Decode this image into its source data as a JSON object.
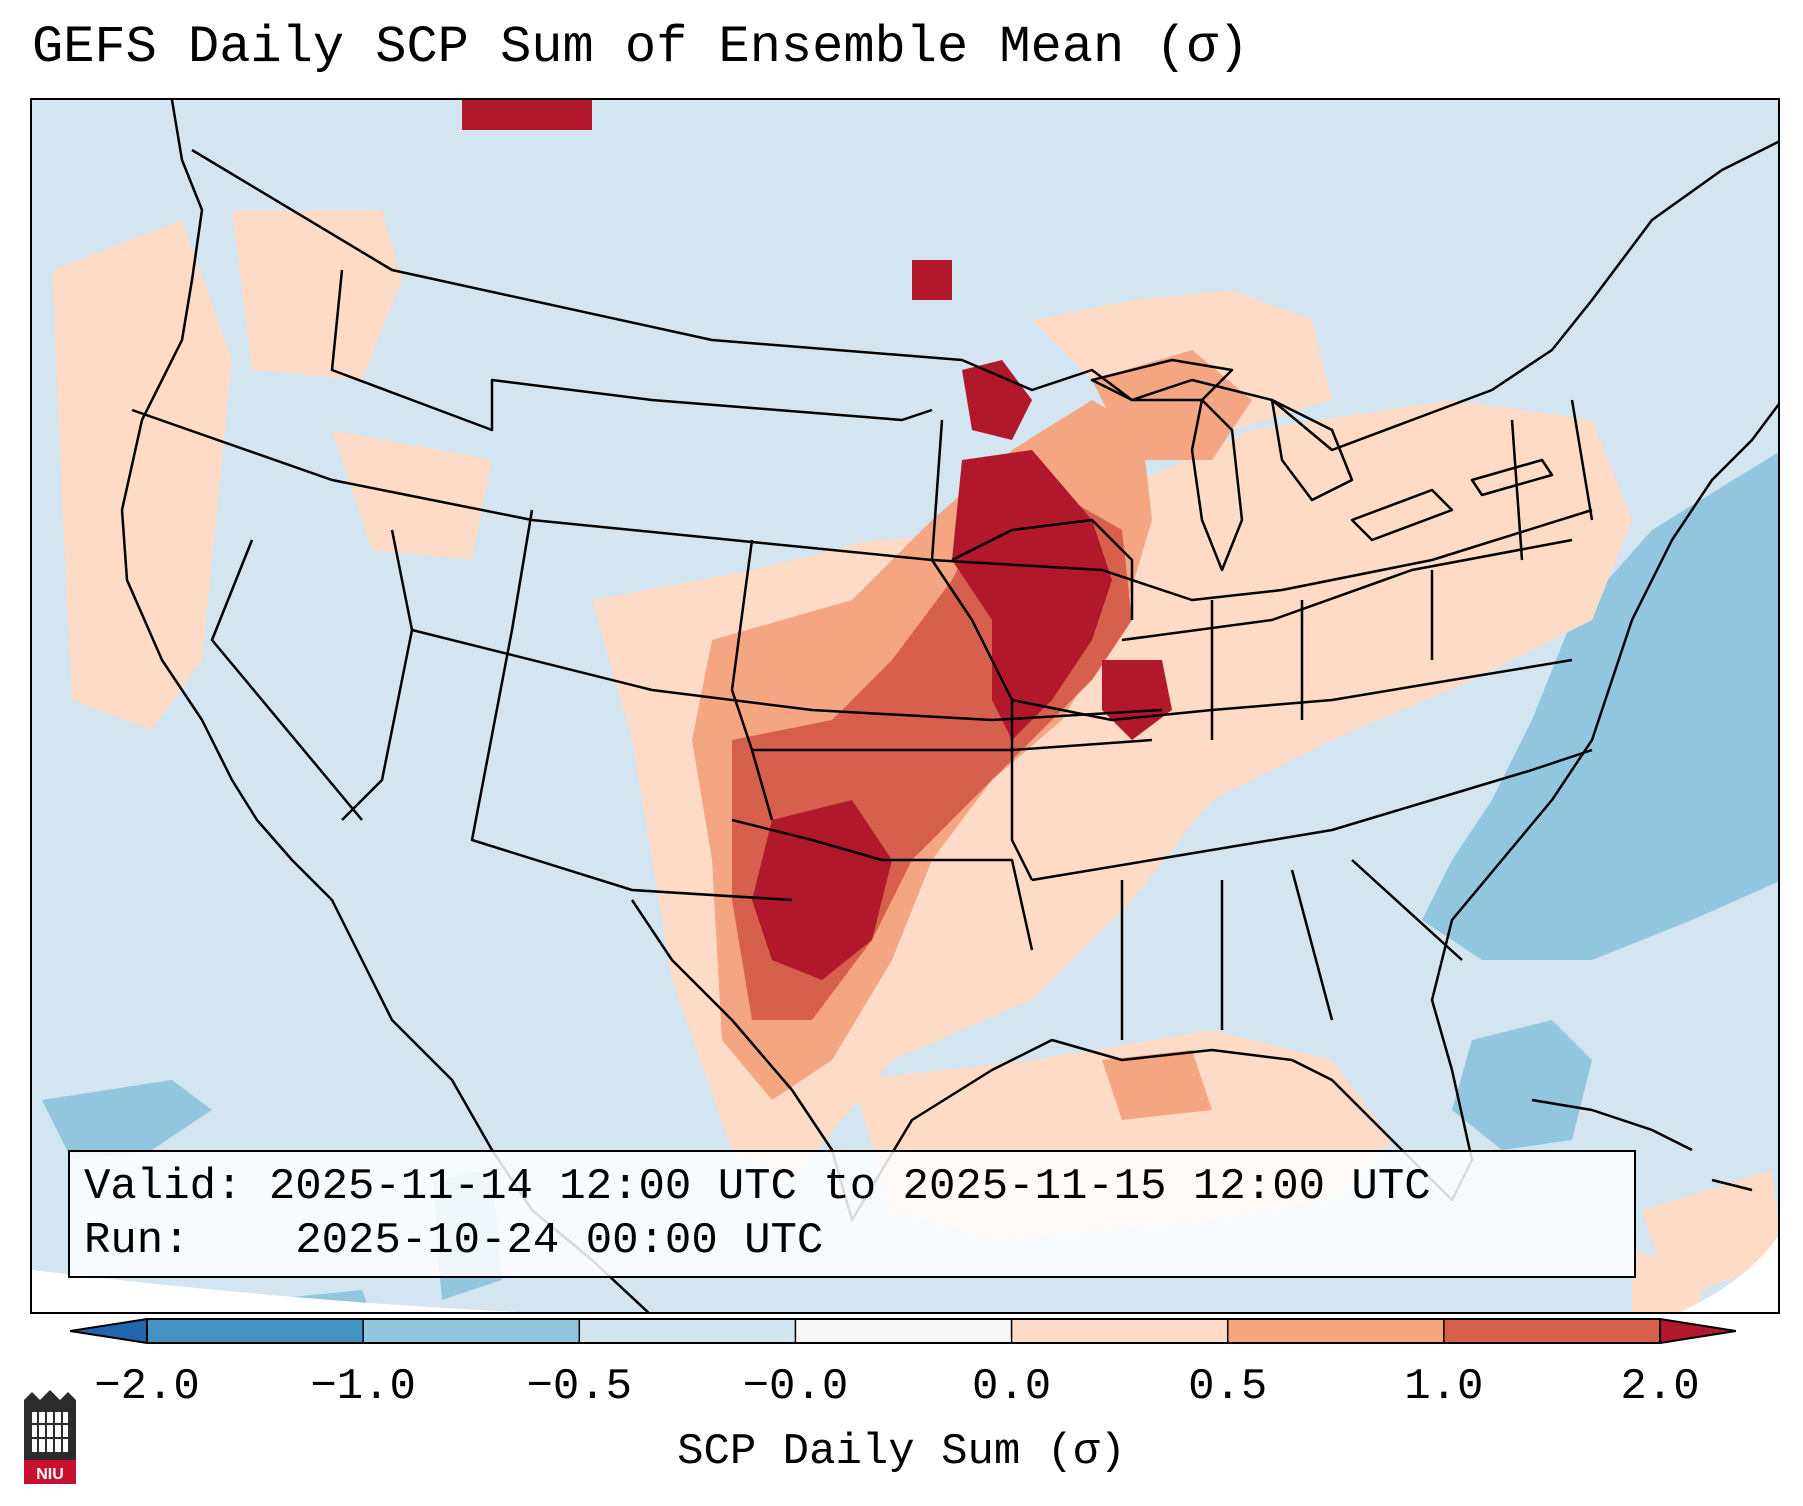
{
  "title": "GEFS Daily SCP Sum of Ensemble Mean (σ)",
  "info": {
    "valid_label": "Valid:",
    "valid_value": "2025-11-14 12:00 UTC to 2025-11-15 12:00 UTC",
    "run_label": "Run:",
    "run_value": "2025-10-24 00:00 UTC"
  },
  "colorbar": {
    "label": "SCP Daily Sum (σ)",
    "ticks": [
      "−2.0",
      "−1.0",
      "−0.5",
      "−0.0",
      "0.0",
      "0.5",
      "1.0",
      "2.0"
    ],
    "bins": [
      {
        "range": "< -2.0",
        "color": "#2166ac"
      },
      {
        "range": "-2.0 to -1.0",
        "color": "#4393c3"
      },
      {
        "range": "-1.0 to -0.5",
        "color": "#92c5de"
      },
      {
        "range": "-0.5 to -0.0",
        "color": "#d1e5f0"
      },
      {
        "range": "-0.0 to 0.0",
        "color": "#f7f7f7"
      },
      {
        "range": "0.0 to 0.5",
        "color": "#fddbc7"
      },
      {
        "range": "0.5 to 1.0",
        "color": "#f4a582"
      },
      {
        "range": "1.0 to 2.0",
        "color": "#d6604d"
      },
      {
        "range": "> 2.0",
        "color": "#b2182b"
      }
    ]
  },
  "colors": {
    "neutral_low": "#d1e5f0",
    "light_red": "#fddbc7",
    "medium_red": "#f4a582",
    "dark_red": "#d6604d",
    "darkest_red": "#b2182b",
    "light_blue": "#92c5de"
  },
  "logo": {
    "text": "NIU",
    "name": "NIU logo"
  }
}
